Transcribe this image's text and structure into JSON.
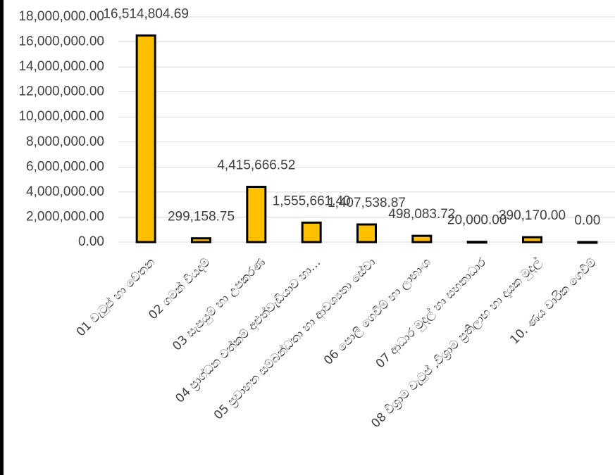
{
  "chart_data": {
    "type": "bar",
    "categories": [
      "01 වැටුප් හා වේතන",
      "02 ගමන් වියදම්",
      "03 සැපයුම් හා උපකරණ",
      "04 ප්‍රාග්ධන වත්කම් අළුත්වැඩියාව හා…",
      "05 ප්‍රවාහන සම්බන්ධතා හා ආවශ්‍යතා සේවා",
      "06 පොලී ගෙවීම් හා ලාභාංශ",
      "07 ආධාර මුදල් හා සහනාධාර",
      "08 විශ්‍රාම වැටුප් ,විශ්‍රාම ප්‍රතිලාභ හා දායක මුදල්",
      "10. ණය වාරික ගෙවීම්"
    ],
    "values": [
      16514804.69,
      299158.75,
      4415666.52,
      1555661.4,
      1407538.87,
      498083.72,
      20000,
      390170,
      0
    ],
    "value_labels": [
      "16,514,804.69",
      "299,158.75",
      "4,415,666.52",
      "1,555,661.40",
      "1,407,538.87",
      "498,083.72",
      "20,000.00",
      "390,170.00",
      "0.00"
    ],
    "color": "#ffc000",
    "ylim": [
      0,
      18000000
    ],
    "yticks": [
      {
        "value": 0,
        "label": "0.00"
      },
      {
        "value": 2000000,
        "label": "2,000,000.00"
      },
      {
        "value": 4000000,
        "label": "4,000,000.00"
      },
      {
        "value": 6000000,
        "label": "6,000,000.00"
      },
      {
        "value": 8000000,
        "label": "8,000,000.00"
      },
      {
        "value": 10000000,
        "label": "10,000,000.00"
      },
      {
        "value": 12000000,
        "label": "12,000,000.00"
      },
      {
        "value": 14000000,
        "label": "14,000,000.00"
      },
      {
        "value": 16000000,
        "label": "16,000,000.00"
      },
      {
        "value": 18000000,
        "label": "18,000,000.00"
      }
    ],
    "grid": true
  }
}
